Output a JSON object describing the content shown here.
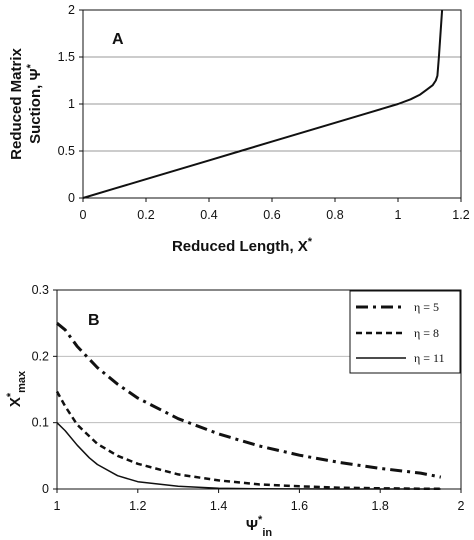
{
  "chart_data": [
    {
      "type": "line",
      "panel_label": "A",
      "xlabel": "Reduced Length, X*",
      "xlabel_main": "Reduced Length, X",
      "xlabel_sup": "*",
      "ylabel": "Reduced Matrix Suction, Ψ*",
      "ylabel_line1": "Reduced Matrix",
      "ylabel_line2_main": "Suction, Ψ",
      "ylabel_line2_sup": "*",
      "xlim": [
        0,
        1.2
      ],
      "ylim": [
        0,
        2
      ],
      "xticks": [
        "0",
        "0.2",
        "0.4",
        "0.6",
        "0.8",
        "1",
        "1.2"
      ],
      "xtick_values": [
        0,
        0.2,
        0.4,
        0.6,
        0.8,
        1.0,
        1.2
      ],
      "yticks": [
        "0",
        "0.5",
        "1",
        "1.5",
        "2"
      ],
      "ytick_values": [
        0,
        0.5,
        1.0,
        1.5,
        2.0
      ],
      "grid": "horizontal",
      "series": [
        {
          "x": [
            0,
            0.1,
            0.2,
            0.3,
            0.4,
            0.5,
            0.6,
            0.7,
            0.8,
            0.9,
            0.95,
            1.0,
            1.04,
            1.07,
            1.09,
            1.11,
            1.12,
            1.125,
            1.13,
            1.135,
            1.14
          ],
          "y": [
            0,
            0.1,
            0.2,
            0.3,
            0.4,
            0.5,
            0.6,
            0.7,
            0.8,
            0.9,
            0.95,
            1.0,
            1.05,
            1.1,
            1.15,
            1.2,
            1.25,
            1.3,
            1.5,
            1.75,
            2.0
          ]
        }
      ]
    },
    {
      "type": "line",
      "panel_label": "B",
      "xlabel": "Ψ*in",
      "xlabel_main": "Ψ",
      "xlabel_sup": "*",
      "xlabel_sub": "in",
      "ylabel": "X*max",
      "ylabel_main": "X",
      "ylabel_sup": "*",
      "ylabel_sub": "max",
      "xlim": [
        1,
        2
      ],
      "ylim": [
        0,
        0.3
      ],
      "xticks": [
        "1",
        "1.2",
        "1.4",
        "1.6",
        "1.8",
        "2"
      ],
      "xtick_values": [
        1,
        1.2,
        1.4,
        1.6,
        1.8,
        2
      ],
      "yticks": [
        "0",
        "0.1",
        "0.2",
        "0.3"
      ],
      "ytick_values": [
        0,
        0.1,
        0.2,
        0.3
      ],
      "grid": "horizontal",
      "legend_position": "top-right",
      "series": [
        {
          "name": "η = 5",
          "style": "dash-dot",
          "x": [
            1.0,
            1.02,
            1.05,
            1.1,
            1.15,
            1.2,
            1.3,
            1.4,
            1.5,
            1.6,
            1.7,
            1.8,
            1.9,
            1.95
          ],
          "y": [
            0.25,
            0.24,
            0.215,
            0.183,
            0.158,
            0.137,
            0.106,
            0.083,
            0.065,
            0.051,
            0.04,
            0.031,
            0.024,
            0.018
          ]
        },
        {
          "name": "η = 8",
          "style": "dashed",
          "x": [
            1.0,
            1.02,
            1.05,
            1.1,
            1.15,
            1.2,
            1.3,
            1.4,
            1.5,
            1.6,
            1.7,
            1.8,
            1.9,
            1.95
          ],
          "y": [
            0.147,
            0.125,
            0.097,
            0.068,
            0.05,
            0.038,
            0.022,
            0.013,
            0.007,
            0.004,
            0.002,
            0.001,
            0.0005,
            0.0003
          ]
        },
        {
          "name": "η = 11",
          "style": "solid",
          "x": [
            1.0,
            1.02,
            1.05,
            1.08,
            1.1,
            1.15,
            1.2,
            1.3,
            1.4,
            1.5,
            1.6,
            1.7,
            1.8,
            1.9,
            1.95
          ],
          "y": [
            0.1,
            0.088,
            0.066,
            0.047,
            0.037,
            0.02,
            0.011,
            0.004,
            0.001,
            0.0003,
            0.0001,
            0,
            0,
            0,
            0
          ]
        }
      ]
    }
  ]
}
